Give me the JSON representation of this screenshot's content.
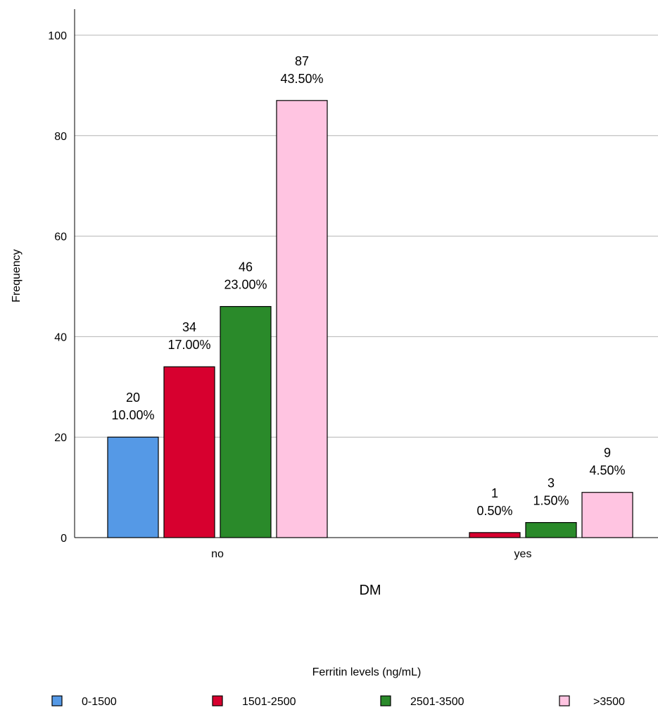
{
  "chart_data": {
    "type": "bar",
    "xlabel": "DM",
    "ylabel": "Frequency",
    "ylim": [
      0,
      100
    ],
    "yticks": [
      0,
      20,
      40,
      60,
      80,
      100
    ],
    "grid": true,
    "categories": [
      "no",
      "yes"
    ],
    "legend_title": "Ferritin levels (ng/mL)",
    "legend_position": "bottom",
    "series": [
      {
        "name": "0-1500",
        "color": "#5599e6",
        "values": [
          20,
          0
        ],
        "labels": [
          [
            "20",
            "10.00%"
          ],
          null
        ]
      },
      {
        "name": "1501-2500",
        "color": "#d7002f",
        "values": [
          34,
          1
        ],
        "labels": [
          [
            "34",
            "17.00%"
          ],
          [
            "1",
            "0.50%"
          ]
        ]
      },
      {
        "name": "2501-3500",
        "color": "#2a8a2a",
        "values": [
          46,
          3
        ],
        "labels": [
          [
            "46",
            "23.00%"
          ],
          [
            "3",
            "1.50%"
          ]
        ]
      },
      {
        "name": ">3500",
        "color": "#ffc4e1",
        "values": [
          87,
          9
        ],
        "labels": [
          [
            "87",
            "43.50%"
          ],
          [
            "9",
            "4.50%"
          ]
        ]
      }
    ]
  }
}
